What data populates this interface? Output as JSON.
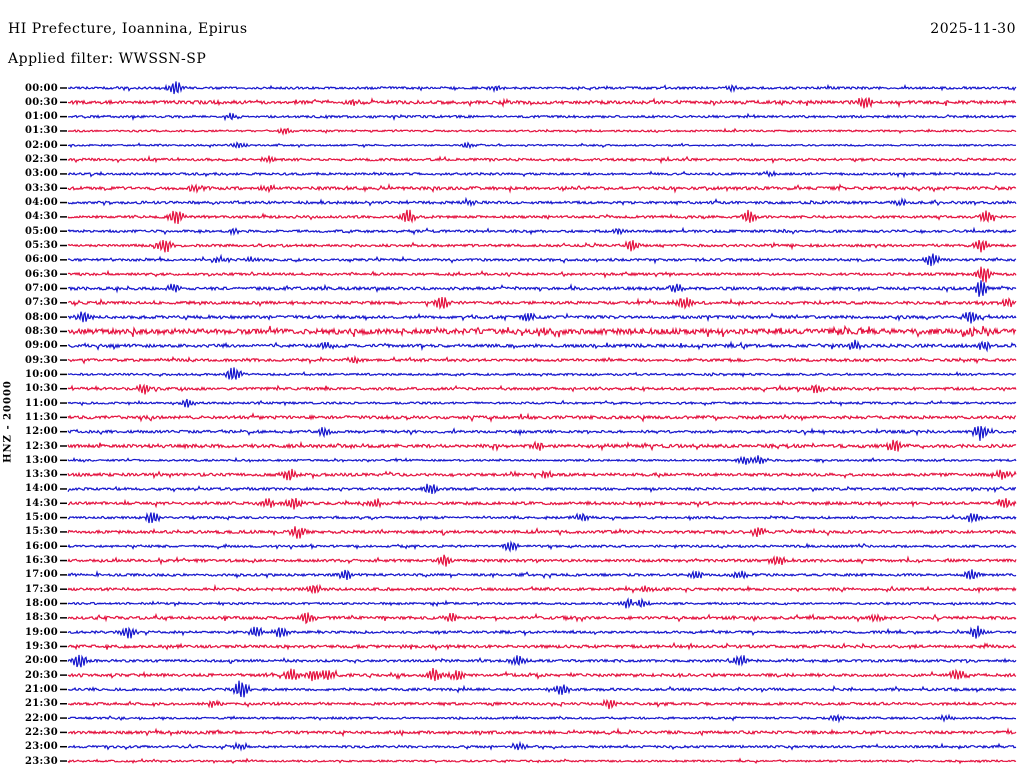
{
  "header": {
    "title": "HI Prefecture, Ioannina, Epirus",
    "date": "2025-11-30",
    "filter_label": "Applied filter: WWSSN-SP"
  },
  "axis": {
    "channel_label": "HNZ - 20000"
  },
  "colors": {
    "background": "#ffffff",
    "text": "#000000",
    "tick": "#000000",
    "trace_blue": "#1414cc",
    "trace_red": "#e4113e"
  },
  "chart_data": {
    "type": "line",
    "subtype": "helicorder-seismogram",
    "title": "HI Prefecture, Ioannina, Epirus",
    "date_label": "2025-11-30",
    "filter_label": "Applied filter: WWSSN-SP",
    "y_axis_label": "HNZ - 20000",
    "row_duration_minutes": 30,
    "time_start": "00:00",
    "time_end": "23:30",
    "grid": false,
    "legend": false,
    "rows": [
      {
        "time": "00:00",
        "color": "blue",
        "noise": 1.1,
        "events": [
          {
            "x": 0.113,
            "amp": 7
          },
          {
            "x": 0.45,
            "amp": 2.5
          },
          {
            "x": 0.7,
            "amp": 2.5
          }
        ]
      },
      {
        "time": "00:30",
        "color": "red",
        "noise": 1.6,
        "events": [
          {
            "x": 0.3,
            "amp": 3
          },
          {
            "x": 0.841,
            "amp": 7
          }
        ]
      },
      {
        "time": "01:00",
        "color": "blue",
        "noise": 1.1,
        "events": [
          {
            "x": 0.171,
            "amp": 3
          }
        ]
      },
      {
        "time": "01:30",
        "color": "red",
        "noise": 0.9,
        "events": [
          {
            "x": 0.229,
            "amp": 3
          }
        ]
      },
      {
        "time": "02:00",
        "color": "blue",
        "noise": 0.8,
        "events": [
          {
            "x": 0.18,
            "amp": 2.5
          },
          {
            "x": 0.42,
            "amp": 2
          }
        ]
      },
      {
        "time": "02:30",
        "color": "red",
        "noise": 1.2,
        "events": [
          {
            "x": 0.21,
            "amp": 2
          }
        ]
      },
      {
        "time": "03:00",
        "color": "blue",
        "noise": 1.1,
        "events": [
          {
            "x": 0.74,
            "amp": 2
          }
        ]
      },
      {
        "time": "03:30",
        "color": "red",
        "noise": 1.5,
        "events": [
          {
            "x": 0.134,
            "amp": 4
          },
          {
            "x": 0.21,
            "amp": 3
          }
        ]
      },
      {
        "time": "04:00",
        "color": "blue",
        "noise": 1.3,
        "events": [
          {
            "x": 0.42,
            "amp": 2.5
          },
          {
            "x": 0.88,
            "amp": 2.5
          }
        ]
      },
      {
        "time": "04:30",
        "color": "red",
        "noise": 1.2,
        "events": [
          {
            "x": 0.115,
            "amp": 7
          },
          {
            "x": 0.358,
            "amp": 7
          },
          {
            "x": 0.718,
            "amp": 6
          },
          {
            "x": 0.969,
            "amp": 6
          }
        ]
      },
      {
        "time": "05:00",
        "color": "blue",
        "noise": 1.2,
        "events": [
          {
            "x": 0.175,
            "amp": 3
          },
          {
            "x": 0.583,
            "amp": 3
          }
        ]
      },
      {
        "time": "05:30",
        "color": "red",
        "noise": 1.2,
        "events": [
          {
            "x": 0.102,
            "amp": 7
          },
          {
            "x": 0.594,
            "amp": 6
          },
          {
            "x": 0.963,
            "amp": 6
          }
        ]
      },
      {
        "time": "06:00",
        "color": "blue",
        "noise": 1.2,
        "events": [
          {
            "x": 0.16,
            "amp": 3
          },
          {
            "x": 0.192,
            "amp": 3
          },
          {
            "x": 0.911,
            "amp": 6
          }
        ]
      },
      {
        "time": "06:30",
        "color": "red",
        "noise": 1.2,
        "events": [
          {
            "x": 0.966,
            "amp": 8
          }
        ]
      },
      {
        "time": "07:00",
        "color": "blue",
        "noise": 1.4,
        "events": [
          {
            "x": 0.112,
            "amp": 4
          },
          {
            "x": 0.642,
            "amp": 4
          },
          {
            "x": 0.963,
            "amp": 8
          }
        ]
      },
      {
        "time": "07:30",
        "color": "red",
        "noise": 1.4,
        "events": [
          {
            "x": 0.395,
            "amp": 6
          },
          {
            "x": 0.65,
            "amp": 6
          },
          {
            "x": 0.99,
            "amp": 4
          }
        ]
      },
      {
        "time": "08:00",
        "color": "blue",
        "noise": 1.4,
        "events": [
          {
            "x": 0.015,
            "amp": 5
          },
          {
            "x": 0.486,
            "amp": 4
          },
          {
            "x": 0.952,
            "amp": 6
          }
        ]
      },
      {
        "time": "08:30",
        "color": "red",
        "noise": 2.6,
        "events": [
          {
            "x": 0.5,
            "amp": 3
          },
          {
            "x": 0.95,
            "amp": 4
          }
        ]
      },
      {
        "time": "09:00",
        "color": "blue",
        "noise": 1.5,
        "events": [
          {
            "x": 0.273,
            "amp": 4
          },
          {
            "x": 0.829,
            "amp": 5
          },
          {
            "x": 0.966,
            "amp": 5
          }
        ]
      },
      {
        "time": "09:30",
        "color": "red",
        "noise": 1.3,
        "events": [
          {
            "x": 0.302,
            "amp": 4
          }
        ]
      },
      {
        "time": "10:00",
        "color": "blue",
        "noise": 1.0,
        "events": [
          {
            "x": 0.175,
            "amp": 7
          }
        ]
      },
      {
        "time": "10:30",
        "color": "red",
        "noise": 1.3,
        "events": [
          {
            "x": 0.08,
            "amp": 5
          },
          {
            "x": 0.789,
            "amp": 4
          }
        ]
      },
      {
        "time": "11:00",
        "color": "blue",
        "noise": 1.0,
        "events": [
          {
            "x": 0.126,
            "amp": 4
          }
        ]
      },
      {
        "time": "11:30",
        "color": "red",
        "noise": 1.5,
        "events": []
      },
      {
        "time": "12:00",
        "color": "blue",
        "noise": 1.3,
        "events": [
          {
            "x": 0.27,
            "amp": 4
          },
          {
            "x": 0.962,
            "amp": 7
          }
        ]
      },
      {
        "time": "12:30",
        "color": "red",
        "noise": 1.6,
        "events": [
          {
            "x": 0.495,
            "amp": 4
          },
          {
            "x": 0.873,
            "amp": 6
          }
        ]
      },
      {
        "time": "13:00",
        "color": "blue",
        "noise": 0.9,
        "events": [
          {
            "x": 0.713,
            "amp": 4
          },
          {
            "x": 0.731,
            "amp": 4
          }
        ]
      },
      {
        "time": "13:30",
        "color": "red",
        "noise": 1.4,
        "events": [
          {
            "x": 0.233,
            "amp": 6
          },
          {
            "x": 0.505,
            "amp": 3
          },
          {
            "x": 0.987,
            "amp": 5
          }
        ]
      },
      {
        "time": "14:00",
        "color": "blue",
        "noise": 1.2,
        "events": [
          {
            "x": 0.383,
            "amp": 6
          }
        ]
      },
      {
        "time": "14:30",
        "color": "red",
        "noise": 1.4,
        "events": [
          {
            "x": 0.21,
            "amp": 5
          },
          {
            "x": 0.238,
            "amp": 6
          },
          {
            "x": 0.325,
            "amp": 4
          },
          {
            "x": 0.987,
            "amp": 5
          }
        ]
      },
      {
        "time": "15:00",
        "color": "blue",
        "noise": 1.1,
        "events": [
          {
            "x": 0.089,
            "amp": 6
          },
          {
            "x": 0.542,
            "amp": 4
          },
          {
            "x": 0.954,
            "amp": 5
          }
        ]
      },
      {
        "time": "15:30",
        "color": "red",
        "noise": 1.4,
        "events": [
          {
            "x": 0.242,
            "amp": 6
          },
          {
            "x": 0.727,
            "amp": 5
          }
        ]
      },
      {
        "time": "16:00",
        "color": "blue",
        "noise": 1.1,
        "events": [
          {
            "x": 0.467,
            "amp": 5
          }
        ]
      },
      {
        "time": "16:30",
        "color": "red",
        "noise": 1.3,
        "events": [
          {
            "x": 0.397,
            "amp": 6
          },
          {
            "x": 0.748,
            "amp": 5
          }
        ]
      },
      {
        "time": "17:00",
        "color": "blue",
        "noise": 1.2,
        "events": [
          {
            "x": 0.293,
            "amp": 5
          },
          {
            "x": 0.663,
            "amp": 4
          },
          {
            "x": 0.708,
            "amp": 4
          },
          {
            "x": 0.954,
            "amp": 5
          }
        ]
      },
      {
        "time": "17:30",
        "color": "red",
        "noise": 1.3,
        "events": [
          {
            "x": 0.26,
            "amp": 4
          },
          {
            "x": 0.61,
            "amp": 3
          }
        ]
      },
      {
        "time": "18:00",
        "color": "blue",
        "noise": 1.0,
        "events": [
          {
            "x": 0.592,
            "amp": 5
          },
          {
            "x": 0.604,
            "amp": 5
          }
        ]
      },
      {
        "time": "18:30",
        "color": "red",
        "noise": 1.4,
        "events": [
          {
            "x": 0.252,
            "amp": 6
          },
          {
            "x": 0.405,
            "amp": 4
          },
          {
            "x": 0.85,
            "amp": 3
          }
        ]
      },
      {
        "time": "19:00",
        "color": "blue",
        "noise": 1.2,
        "events": [
          {
            "x": 0.064,
            "amp": 6
          },
          {
            "x": 0.199,
            "amp": 5
          },
          {
            "x": 0.225,
            "amp": 5
          },
          {
            "x": 0.959,
            "amp": 6
          }
        ]
      },
      {
        "time": "19:30",
        "color": "red",
        "noise": 1.4,
        "events": []
      },
      {
        "time": "20:00",
        "color": "blue",
        "noise": 1.2,
        "events": [
          {
            "x": 0.012,
            "amp": 7
          },
          {
            "x": 0.474,
            "amp": 5
          },
          {
            "x": 0.71,
            "amp": 6
          }
        ]
      },
      {
        "time": "20:30",
        "color": "red",
        "noise": 1.4,
        "events": [
          {
            "x": 0.236,
            "amp": 6
          },
          {
            "x": 0.26,
            "amp": 6
          },
          {
            "x": 0.273,
            "amp": 6
          },
          {
            "x": 0.386,
            "amp": 6
          },
          {
            "x": 0.41,
            "amp": 5
          },
          {
            "x": 0.938,
            "amp": 5
          }
        ]
      },
      {
        "time": "21:00",
        "color": "blue",
        "noise": 1.2,
        "events": [
          {
            "x": 0.182,
            "amp": 9
          },
          {
            "x": 0.521,
            "amp": 5
          }
        ]
      },
      {
        "time": "21:30",
        "color": "red",
        "noise": 1.3,
        "events": [
          {
            "x": 0.152,
            "amp": 3
          },
          {
            "x": 0.571,
            "amp": 4
          }
        ]
      },
      {
        "time": "22:00",
        "color": "blue",
        "noise": 1.0,
        "events": [
          {
            "x": 0.811,
            "amp": 3
          },
          {
            "x": 0.925,
            "amp": 3
          }
        ]
      },
      {
        "time": "22:30",
        "color": "red",
        "noise": 1.4,
        "events": [
          {
            "x": 0.35,
            "amp": 2
          }
        ]
      },
      {
        "time": "23:00",
        "color": "blue",
        "noise": 1.1,
        "events": [
          {
            "x": 0.181,
            "amp": 3
          },
          {
            "x": 0.477,
            "amp": 3
          }
        ]
      },
      {
        "time": "23:30",
        "color": "red",
        "noise": 0.9,
        "events": []
      }
    ]
  }
}
